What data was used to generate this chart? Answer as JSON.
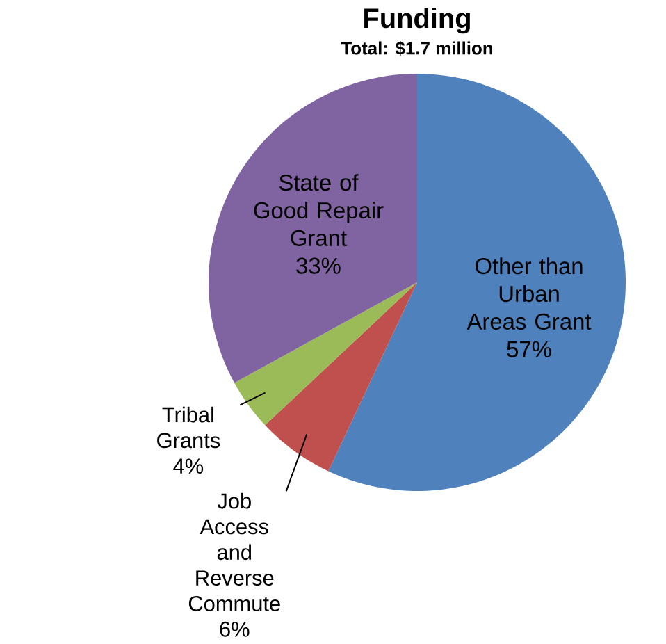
{
  "chart_data": {
    "type": "pie",
    "title": "Funding",
    "subtitle": "Total: $1.7 million",
    "categories": [
      "Other than Urban Areas Grant",
      "Job Access and Reverse Commute",
      "Tribal Grants",
      "State of Good Repair Grant"
    ],
    "values": [
      57,
      6,
      4,
      33
    ],
    "colors": [
      "#4f81bd",
      "#c0504d",
      "#9bbb59",
      "#8064a2"
    ],
    "value_labels": [
      "57%",
      "6%",
      "4%",
      "33%"
    ]
  }
}
